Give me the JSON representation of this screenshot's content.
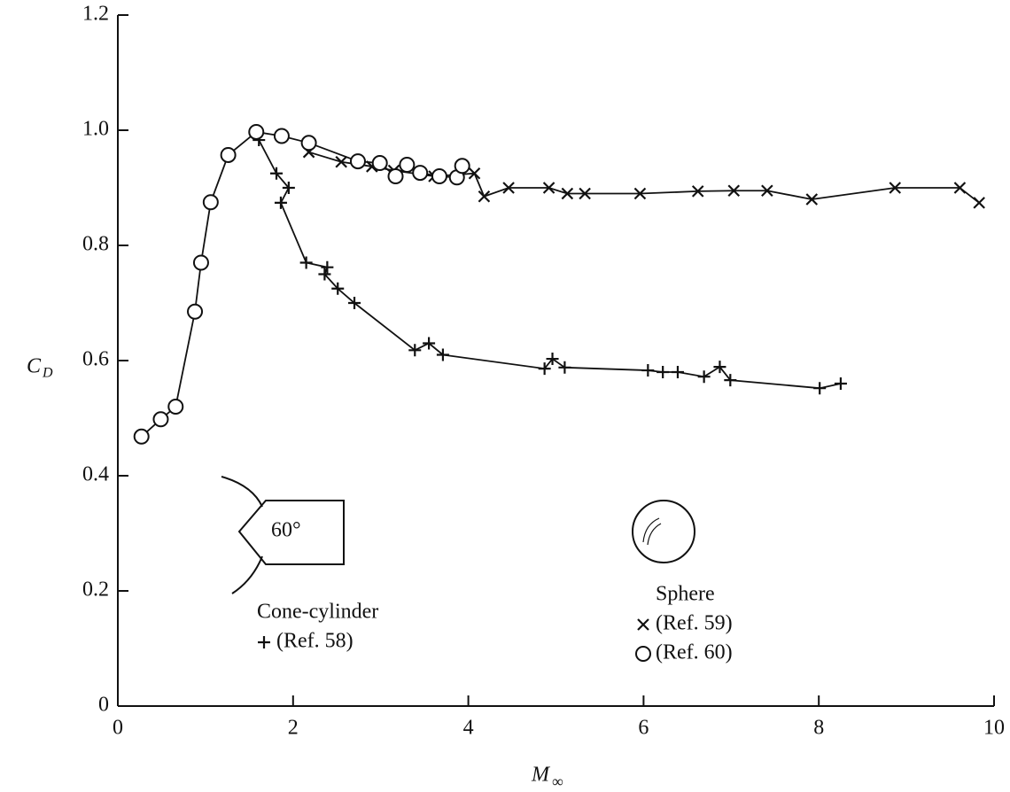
{
  "chart_data": {
    "type": "scatter",
    "xlabel": "M",
    "xlabel_sub": "∞",
    "ylabel": "C",
    "ylabel_sub": "D",
    "xlim": [
      0,
      10
    ],
    "ylim": [
      0,
      1.2
    ],
    "xticks": [
      0,
      2,
      4,
      6,
      8,
      10
    ],
    "yticks": [
      0,
      0.2,
      0.4,
      0.6,
      0.8,
      {
        "value": 1,
        "label": "1.0"
      },
      1.2
    ],
    "color": "#111111",
    "annotations": [
      "Cone-cylinder",
      "Sphere",
      "60°"
    ],
    "series": [
      {
        "name": "(Ref. 58)",
        "marker": "+",
        "group": 0,
        "x": [
          1.61,
          1.81,
          1.95,
          1.86,
          2.15,
          2.39,
          2.36,
          2.51,
          2.7,
          3.39,
          3.55,
          3.71,
          4.87,
          4.96,
          5.1,
          6.05,
          6.22,
          6.39,
          6.69,
          6.87,
          6.99,
          8.01,
          8.25
        ],
        "values": [
          0.983,
          0.925,
          0.9,
          0.874,
          0.77,
          0.762,
          0.75,
          0.725,
          0.7,
          0.618,
          0.63,
          0.61,
          0.586,
          0.603,
          0.588,
          0.583,
          0.58,
          0.58,
          0.572,
          0.589,
          0.566,
          0.552,
          0.56
        ]
      },
      {
        "name": "(Ref. 59)",
        "marker": "x",
        "group": 1,
        "x": [
          2.18,
          2.55,
          2.9,
          3.15,
          3.61,
          4.07,
          4.18,
          4.46,
          4.92,
          5.13,
          5.33,
          5.96,
          6.62,
          7.03,
          7.41,
          7.92,
          8.87,
          9.61,
          9.83
        ],
        "values": [
          0.962,
          0.945,
          0.937,
          0.93,
          0.92,
          0.925,
          0.885,
          0.9,
          0.9,
          0.89,
          0.89,
          0.89,
          0.894,
          0.895,
          0.895,
          0.88,
          0.9,
          0.9,
          0.874
        ]
      },
      {
        "name": "(Ref. 60)",
        "marker": "o",
        "group": 1,
        "x": [
          0.27,
          0.49,
          0.66,
          0.88,
          0.95,
          1.06,
          1.26,
          1.58,
          1.87,
          2.18,
          2.74,
          2.99,
          3.17,
          3.3,
          3.45,
          3.67,
          3.87,
          3.93
        ],
        "values": [
          0.468,
          0.498,
          0.52,
          0.685,
          0.77,
          0.875,
          0.957,
          0.997,
          0.99,
          0.978,
          0.946,
          0.943,
          0.92,
          0.94,
          0.926,
          0.92,
          0.918,
          0.938
        ]
      }
    ]
  }
}
